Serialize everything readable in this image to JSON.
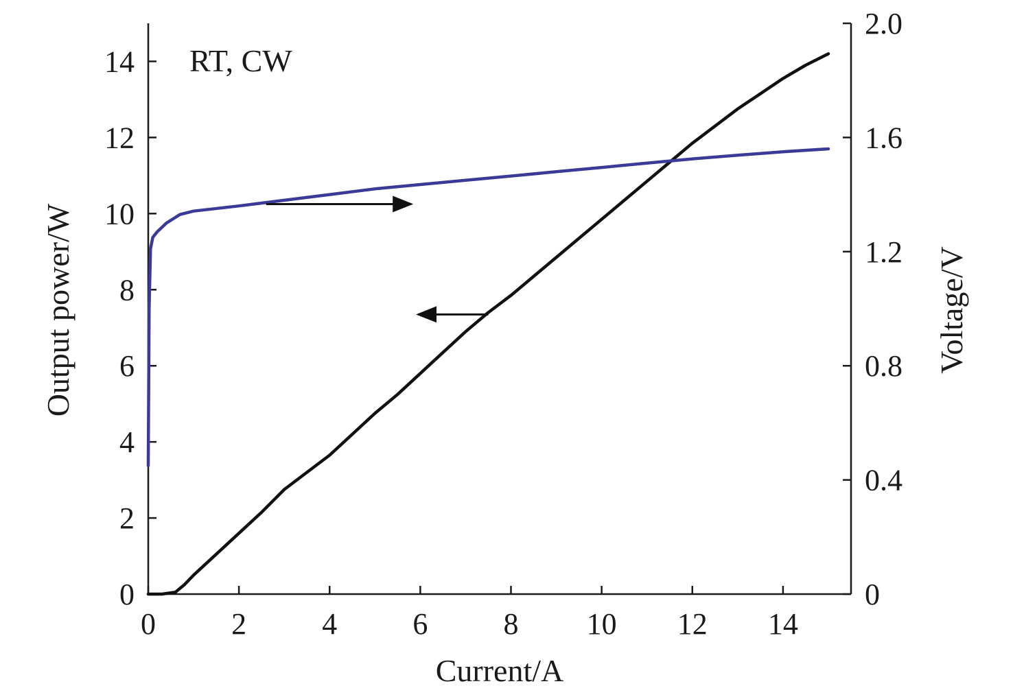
{
  "chart_data": {
    "type": "line",
    "annotation": "RT, CW",
    "xlabel": "Current/A",
    "ylabel_left": "Output power/W",
    "ylabel_right": "Voltage/V",
    "xlim": [
      0,
      15.5
    ],
    "ylim_left": [
      0,
      15
    ],
    "ylim_right": [
      0,
      2.0
    ],
    "x_ticks": [
      0,
      2,
      4,
      6,
      8,
      10,
      12,
      14
    ],
    "y_left_ticks": [
      0,
      2,
      4,
      6,
      8,
      10,
      12,
      14
    ],
    "y_right_ticks": [
      "0",
      "0.4",
      "0.8",
      "1.2",
      "1.6",
      "2.0"
    ],
    "grid": false,
    "series": [
      {
        "axis": "left",
        "color": "#111111",
        "x": [
          0,
          0.3,
          0.6,
          0.8,
          1.0,
          1.5,
          2.0,
          2.5,
          3.0,
          3.5,
          4.0,
          4.5,
          5.0,
          5.5,
          6.0,
          6.5,
          7.0,
          7.5,
          8.0,
          8.5,
          9.0,
          9.5,
          10.0,
          10.5,
          11.0,
          11.5,
          12.0,
          12.5,
          13.0,
          13.5,
          14.0,
          14.5,
          15.0
        ],
        "values": [
          0,
          0,
          0.05,
          0.25,
          0.5,
          1.05,
          1.6,
          2.15,
          2.75,
          3.2,
          3.65,
          4.2,
          4.75,
          5.25,
          5.8,
          6.35,
          6.9,
          7.4,
          7.85,
          8.35,
          8.85,
          9.35,
          9.85,
          10.35,
          10.85,
          11.35,
          11.85,
          12.3,
          12.75,
          13.15,
          13.55,
          13.9,
          14.2
        ]
      },
      {
        "axis": "right",
        "color": "#3b3a98",
        "x": [
          0,
          0.02,
          0.05,
          0.1,
          0.2,
          0.4,
          0.7,
          1.0,
          2.0,
          3.0,
          4.0,
          5.0,
          6.0,
          7.0,
          8.0,
          9.0,
          10.0,
          11.0,
          12.0,
          13.0,
          14.0,
          15.0
        ],
        "values": [
          0.45,
          1.0,
          1.21,
          1.25,
          1.27,
          1.3,
          1.33,
          1.342,
          1.36,
          1.38,
          1.4,
          1.42,
          1.435,
          1.45,
          1.465,
          1.48,
          1.495,
          1.51,
          1.525,
          1.538,
          1.55,
          1.56
        ]
      }
    ],
    "arrows": [
      {
        "direction": "right",
        "axis": "left",
        "x_from": 2.6,
        "x_to": 5.8,
        "y": 10.25
      },
      {
        "direction": "left",
        "axis": "left",
        "x_from": 7.5,
        "x_to": 5.95,
        "y": 7.35
      }
    ]
  }
}
